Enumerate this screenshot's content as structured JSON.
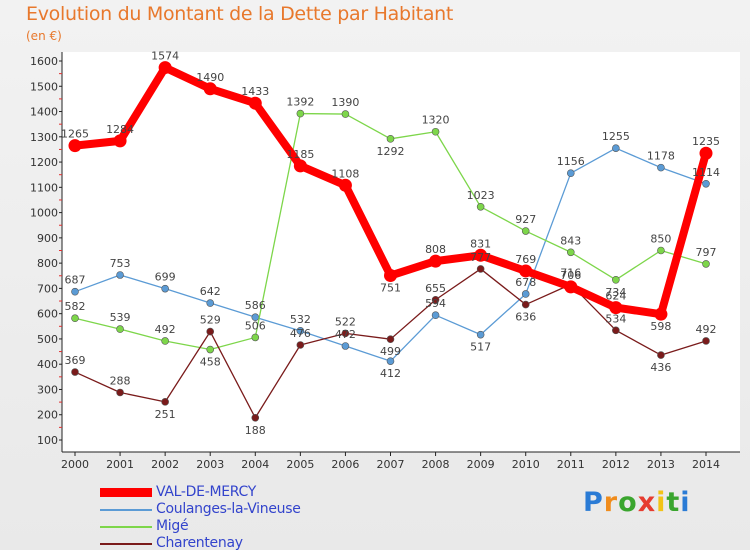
{
  "title": "Evolution du Montant de la Dette par Habitant",
  "unit": "(en €)",
  "logo": {
    "text": "Proxiti",
    "letters": [
      "P",
      "r",
      "o",
      "x",
      "i",
      "t",
      "i"
    ],
    "colors": [
      "#2a7bd5",
      "#f08c1c",
      "#3aa52e",
      "#e63c2f",
      "#f2c316",
      "#3aa52e",
      "#2a7bd5"
    ]
  },
  "chart_data": {
    "type": "line",
    "title": "Evolution du Montant de la Dette par Habitant",
    "ylabel": "(en €)",
    "x": [
      "2000",
      "2001",
      "2002",
      "2003",
      "2004",
      "2005",
      "2006",
      "2007",
      "2008",
      "2009",
      "2010",
      "2011",
      "2012",
      "2013",
      "2014"
    ],
    "ylim": [
      100,
      1600
    ],
    "yticks": [
      100,
      200,
      300,
      400,
      500,
      600,
      700,
      800,
      900,
      1000,
      1100,
      1200,
      1300,
      1400,
      1500,
      1600
    ],
    "grid": false,
    "legend": "bottom-left",
    "series": [
      {
        "name": "VAL-DE-MERCY",
        "color": "#ff0000",
        "values": [
          1265,
          1284,
          1574,
          1490,
          1433,
          1185,
          1108,
          751,
          808,
          831,
          769,
          706,
          624,
          598,
          1235
        ]
      },
      {
        "name": "Coulanges-la-Vineuse",
        "color": "#5b9bd5",
        "values": [
          687,
          753,
          699,
          642,
          586,
          532,
          472,
          412,
          594,
          517,
          678,
          1156,
          1255,
          1178,
          1114
        ]
      },
      {
        "name": "Migé",
        "color": "#7dd64a",
        "values": [
          582,
          539,
          492,
          458,
          506,
          1392,
          1390,
          1292,
          1320,
          1023,
          927,
          843,
          734,
          850,
          797
        ]
      },
      {
        "name": "Charentenay",
        "color": "#7a1b1b",
        "values": [
          369,
          288,
          251,
          529,
          188,
          476,
          522,
          499,
          655,
          777,
          636,
          716,
          534,
          436,
          492
        ]
      }
    ]
  }
}
